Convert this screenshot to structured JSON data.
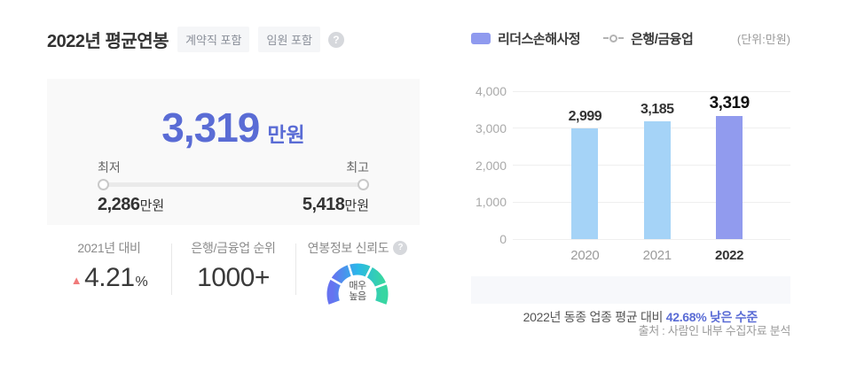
{
  "left_panel": {
    "title": "2022년 평균연봉",
    "badges": [
      "계약직 포함",
      "임원 포함"
    ],
    "help_icon": "?",
    "salary": {
      "value": "3,319",
      "unit": "만원",
      "min_label": "최저",
      "max_label": "최고",
      "min_value": "2,286",
      "min_unit": "만원",
      "max_value": "5,418",
      "max_unit": "만원"
    },
    "stats": [
      {
        "label": "2021년 대비",
        "trend": "up",
        "trend_icon": "▲",
        "value": "4.21",
        "suffix": "%"
      },
      {
        "label": "은행/금융업 순위",
        "value": "1000+"
      },
      {
        "label": "연봉정보 신뢰도",
        "help_icon": "?",
        "gauge_value_top": "매우",
        "gauge_value_bottom": "높음"
      }
    ]
  },
  "right_panel": {
    "unit_note": "(단위:만원)",
    "benchmark": {
      "prefix": "2022년 동종 업종 평균 대비 ",
      "highlight": "42.68%",
      "suffix": " 낮은 수준"
    },
    "source": "출처 : 사람인 내부 수집자료 분석"
  },
  "chart_data": {
    "type": "bar",
    "title": "연도별 평균연봉 비교",
    "categories": [
      "2020",
      "2021",
      "2022"
    ],
    "series": [
      {
        "name": "리더스손해사정",
        "type": "bar",
        "values": [
          2999,
          3185,
          3319
        ],
        "value_labels": [
          "2,999",
          "3,185",
          "3,319"
        ],
        "bar_colors": [
          "#a5d3f7",
          "#a5d3f7",
          "#919bee"
        ]
      },
      {
        "name": "은행/금융업",
        "type": "line",
        "values": []
      }
    ],
    "legend": [
      {
        "label": "리더스손해사정",
        "marker": "bar",
        "color": "#8f9aef"
      },
      {
        "label": "은행/금융업",
        "marker": "line-circle",
        "color": "#b3b3b3"
      }
    ],
    "xlabel": "",
    "ylabel": "",
    "ylim": [
      0,
      4000
    ],
    "yticks": [
      {
        "value": 0,
        "label": "0"
      },
      {
        "value": 1000,
        "label": "1,000"
      },
      {
        "value": 2000,
        "label": "2,000"
      },
      {
        "value": 3000,
        "label": "3,000"
      },
      {
        "value": 4000,
        "label": "4,000"
      }
    ],
    "grid": true,
    "legend_position": "top",
    "emphasized_category_index": 2,
    "unit_note": "(단위:만원)"
  },
  "colors": {
    "accent_blue": "#5a6cd5",
    "bar_default": "#a5d3f7",
    "bar_highlight": "#919bee",
    "trend_up_red": "#f07a7a",
    "caption_bg": "#f7f8fb",
    "box_bg": "#f9f9f9",
    "gauge_gradient": [
      "#6673f0",
      "#2ab7e9",
      "#38d6a2"
    ]
  }
}
